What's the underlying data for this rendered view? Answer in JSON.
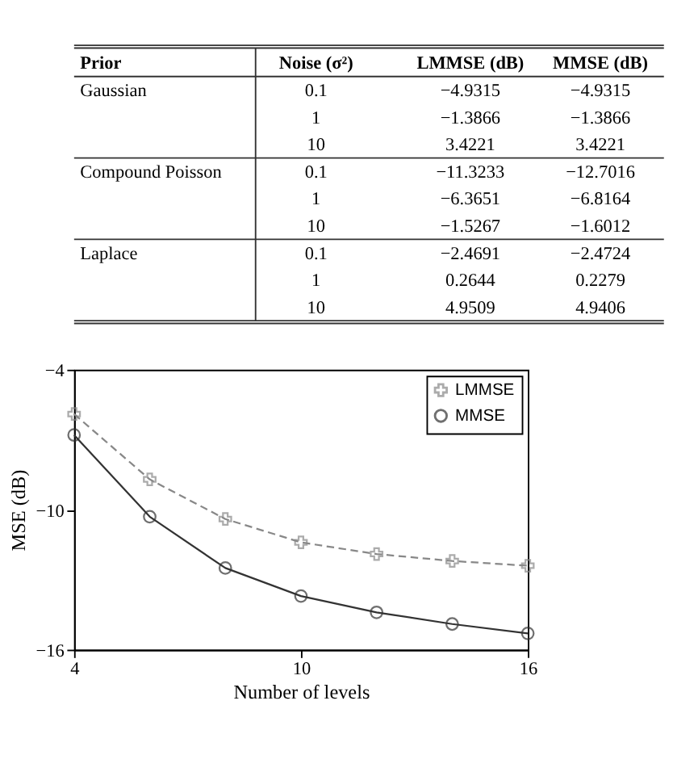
{
  "chart_data": [
    {
      "type": "other",
      "annotations": [
        "Prior",
        "Noise (σ²)",
        "LMMSE (dB)",
        "MMSE (dB)",
        "Gaussian",
        "0.1",
        "−4.9315",
        "−4.9315",
        "1",
        "−1.3866",
        "−1.3866",
        "10",
        "3.4221",
        "3.4221",
        "Compound Poisson",
        "0.1",
        "−11.3233",
        "−12.7016",
        "1",
        "−6.3651",
        "−6.8164",
        "10",
        "−1.5267",
        "−1.6012",
        "Laplace",
        "0.1",
        "−2.4691",
        "−2.4724",
        "1",
        "0.2644",
        "0.2279",
        "10",
        "4.9509",
        "4.9406"
      ]
    },
    {
      "type": "line",
      "xlabel": "Number of levels",
      "ylabel": "MSE (dB)",
      "x": [
        4,
        6,
        8,
        10,
        12,
        14,
        16
      ],
      "xlim": [
        4,
        16
      ],
      "xticks": [
        4,
        10,
        16
      ],
      "ylim": [
        -16,
        -4
      ],
      "yticks": [
        -16,
        -10,
        -4
      ],
      "grid": false,
      "legend": "top right",
      "series": [
        {
          "name": "LMMSE",
          "color": "#888888",
          "marker": "cross",
          "line_style": "dashed",
          "values": [
            -5.9,
            -8.7,
            -10.4,
            -11.4,
            -11.9,
            -12.2,
            -12.4
          ]
        },
        {
          "name": "MMSE",
          "color": "#333333",
          "marker": "circle",
          "line_style": "solid",
          "values": [
            -6.8,
            -10.3,
            -12.5,
            -13.7,
            -14.4,
            -14.9,
            -15.3
          ]
        }
      ]
    }
  ]
}
